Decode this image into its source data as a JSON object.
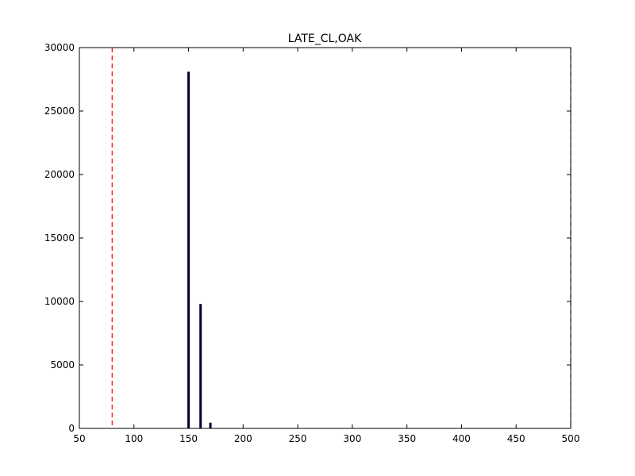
{
  "chart_data": {
    "type": "bar",
    "title": "LATE_CL,OAK",
    "xlabel": "",
    "ylabel": "",
    "xlim": [
      50,
      500
    ],
    "ylim": [
      0,
      30000
    ],
    "xticks": [
      50,
      100,
      150,
      200,
      250,
      300,
      350,
      400,
      450,
      500
    ],
    "yticks": [
      0,
      5000,
      10000,
      15000,
      20000,
      25000,
      30000
    ],
    "grid": false,
    "bars": [
      {
        "x": 150,
        "value": 28100
      },
      {
        "x": 161,
        "value": 9800
      },
      {
        "x": 170,
        "value": 450
      }
    ],
    "reference_lines": [
      {
        "x": 80,
        "style": "dashed",
        "color": "#ff0000"
      },
      {
        "x": 500,
        "style": "dashed",
        "color": "#ff0000"
      }
    ],
    "bar_color": "#000033"
  }
}
